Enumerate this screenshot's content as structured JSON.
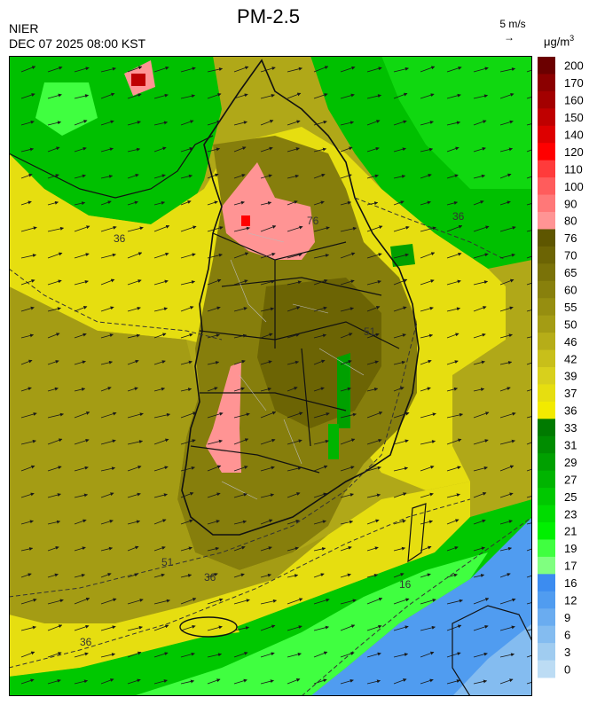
{
  "header": {
    "title": "PM-2.5",
    "agency": "NIER",
    "datetime": "DEC 07 2025 08:00 KST",
    "wind_reference": "5 m/s",
    "unit": "μg/m",
    "unit_exponent": "3"
  },
  "colorbar": {
    "levels": [
      {
        "label": "200",
        "color": "#6b0000"
      },
      {
        "label": "170",
        "color": "#8b0000"
      },
      {
        "label": "160",
        "color": "#a30000"
      },
      {
        "label": "150",
        "color": "#bf0000"
      },
      {
        "label": "140",
        "color": "#dd0000"
      },
      {
        "label": "120",
        "color": "#ff0000"
      },
      {
        "label": "110",
        "color": "#ff3b3b"
      },
      {
        "label": "100",
        "color": "#ff5c5c"
      },
      {
        "label": "90",
        "color": "#ff7878"
      },
      {
        "label": "80",
        "color": "#ff9494"
      },
      {
        "label": "76",
        "color": "#5e5600"
      },
      {
        "label": "70",
        "color": "#6c6404"
      },
      {
        "label": "65",
        "color": "#7a7208"
      },
      {
        "label": "60",
        "color": "#88800c"
      },
      {
        "label": "55",
        "color": "#968e10"
      },
      {
        "label": "50",
        "color": "#a49c14"
      },
      {
        "label": "46",
        "color": "#b6ad18"
      },
      {
        "label": "42",
        "color": "#c8bf1a"
      },
      {
        "label": "39",
        "color": "#d8d01c"
      },
      {
        "label": "37",
        "color": "#e6de10"
      },
      {
        "label": "36",
        "color": "#f2ea00"
      },
      {
        "label": "33",
        "color": "#007a00"
      },
      {
        "label": "31",
        "color": "#008c00"
      },
      {
        "label": "29",
        "color": "#00a000"
      },
      {
        "label": "27",
        "color": "#00b400"
      },
      {
        "label": "25",
        "color": "#00c800"
      },
      {
        "label": "23",
        "color": "#00dc00"
      },
      {
        "label": "21",
        "color": "#00f000"
      },
      {
        "label": "19",
        "color": "#40ff40"
      },
      {
        "label": "17",
        "color": "#80ff80"
      },
      {
        "label": "16",
        "color": "#3c8cf0"
      },
      {
        "label": "12",
        "color": "#509cf0"
      },
      {
        "label": "9",
        "color": "#6aacf0"
      },
      {
        "label": "6",
        "color": "#84bcf0"
      },
      {
        "label": "3",
        "color": "#a0ccf0"
      },
      {
        "label": "0",
        "color": "#bcdcf4"
      }
    ]
  },
  "contour_labels": [
    "36",
    "51",
    "76",
    "16"
  ],
  "wind_direction": "west-southwest (blowing toward east-northeast)"
}
